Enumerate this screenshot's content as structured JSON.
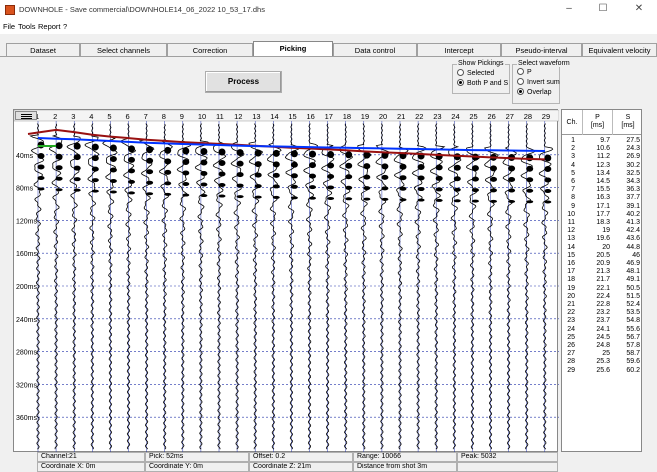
{
  "window": {
    "title": "DOWNHOLE - Save commercial\\DOWNHOLE14_06_2022 10_53_17.dhs",
    "minimize": "–",
    "maximize": "☐",
    "close": "✕"
  },
  "menu": [
    {
      "label": "File"
    },
    {
      "label": "Tools"
    },
    {
      "label": "Report"
    },
    {
      "label": "?"
    }
  ],
  "tabs": [
    {
      "label": "Dataset"
    },
    {
      "label": "Select channels"
    },
    {
      "label": "Correction"
    },
    {
      "label": "Picking",
      "active": true
    },
    {
      "label": "Data control"
    },
    {
      "label": "Intercept"
    },
    {
      "label": "Pseudo-interval"
    },
    {
      "label": "Equivalent velocity"
    }
  ],
  "process_label": "Process",
  "show_pickings": {
    "title": "Show Pickings",
    "options": [
      {
        "label": "Selected",
        "checked": false
      },
      {
        "label": "Both P and S",
        "checked": true
      }
    ]
  },
  "select_waveform": {
    "title": "Select waveform",
    "options": [
      {
        "label": "P",
        "checked": false
      },
      {
        "label": "Invert sum",
        "checked": false
      },
      {
        "label": "Overlap",
        "checked": true
      }
    ]
  },
  "plot": {
    "channels": [
      "1",
      "2",
      "3",
      "4",
      "5",
      "6",
      "7",
      "8",
      "9",
      "10",
      "11",
      "12",
      "13",
      "14",
      "15",
      "16",
      "17",
      "18",
      "19",
      "20",
      "21",
      "22",
      "23",
      "24",
      "25",
      "26",
      "27",
      "28",
      "29"
    ],
    "time_labels": [
      "40ms",
      "80ms",
      "120ms",
      "160ms",
      "200ms",
      "240ms",
      "280ms",
      "320ms",
      "360ms"
    ],
    "colors": {
      "p_pick": "#0033ff",
      "s_pick": "#991111",
      "grid": "#2233aa",
      "trace": "#000000",
      "extra_pick": "#22aa22"
    }
  },
  "status": {
    "channel": "Channel:21",
    "pick": "Pick: 52ms",
    "offset": "Offset: 0.2",
    "range": "Range: 10066",
    "peak": "Peak: 5032",
    "coord_x": "Coordinate X: 0m",
    "coord_y": "Coordinate Y: 0m",
    "coord_z": "Coordinate Z: 21m",
    "distance": "Distance from shot 3m"
  },
  "table": {
    "headers": {
      "ch": "Ch.",
      "p": "P",
      "p_unit": "[ms]",
      "s": "S",
      "s_unit": "[ms]"
    },
    "rows": [
      {
        "ch": "1",
        "p": "9.7",
        "s": "27.5"
      },
      {
        "ch": "2",
        "p": "10.6",
        "s": "24.3"
      },
      {
        "ch": "3",
        "p": "11.2",
        "s": "26.9"
      },
      {
        "ch": "4",
        "p": "12.3",
        "s": "30.2"
      },
      {
        "ch": "5",
        "p": "13.4",
        "s": "32.5"
      },
      {
        "ch": "6",
        "p": "14.5",
        "s": "34.3"
      },
      {
        "ch": "7",
        "p": "15.5",
        "s": "36.3"
      },
      {
        "ch": "8",
        "p": "16.3",
        "s": "37.7"
      },
      {
        "ch": "9",
        "p": "17.1",
        "s": "39.1"
      },
      {
        "ch": "10",
        "p": "17.7",
        "s": "40.2"
      },
      {
        "ch": "11",
        "p": "18.3",
        "s": "41.3"
      },
      {
        "ch": "12",
        "p": "19",
        "s": "42.4"
      },
      {
        "ch": "13",
        "p": "19.6",
        "s": "43.6"
      },
      {
        "ch": "14",
        "p": "20",
        "s": "44.8"
      },
      {
        "ch": "15",
        "p": "20.5",
        "s": "46"
      },
      {
        "ch": "16",
        "p": "20.9",
        "s": "46.9"
      },
      {
        "ch": "17",
        "p": "21.3",
        "s": "48.1"
      },
      {
        "ch": "18",
        "p": "21.7",
        "s": "49.1"
      },
      {
        "ch": "19",
        "p": "22.1",
        "s": "50.5"
      },
      {
        "ch": "20",
        "p": "22.4",
        "s": "51.5"
      },
      {
        "ch": "21",
        "p": "22.8",
        "s": "52.4"
      },
      {
        "ch": "22",
        "p": "23.2",
        "s": "53.5"
      },
      {
        "ch": "23",
        "p": "23.7",
        "s": "54.8"
      },
      {
        "ch": "24",
        "p": "24.1",
        "s": "55.6"
      },
      {
        "ch": "25",
        "p": "24.5",
        "s": "56.7"
      },
      {
        "ch": "26",
        "p": "24.8",
        "s": "57.8"
      },
      {
        "ch": "27",
        "p": "25",
        "s": "58.7"
      },
      {
        "ch": "28",
        "p": "25.3",
        "s": "59.6"
      },
      {
        "ch": "29",
        "p": "25.6",
        "s": "60.2"
      }
    ]
  }
}
